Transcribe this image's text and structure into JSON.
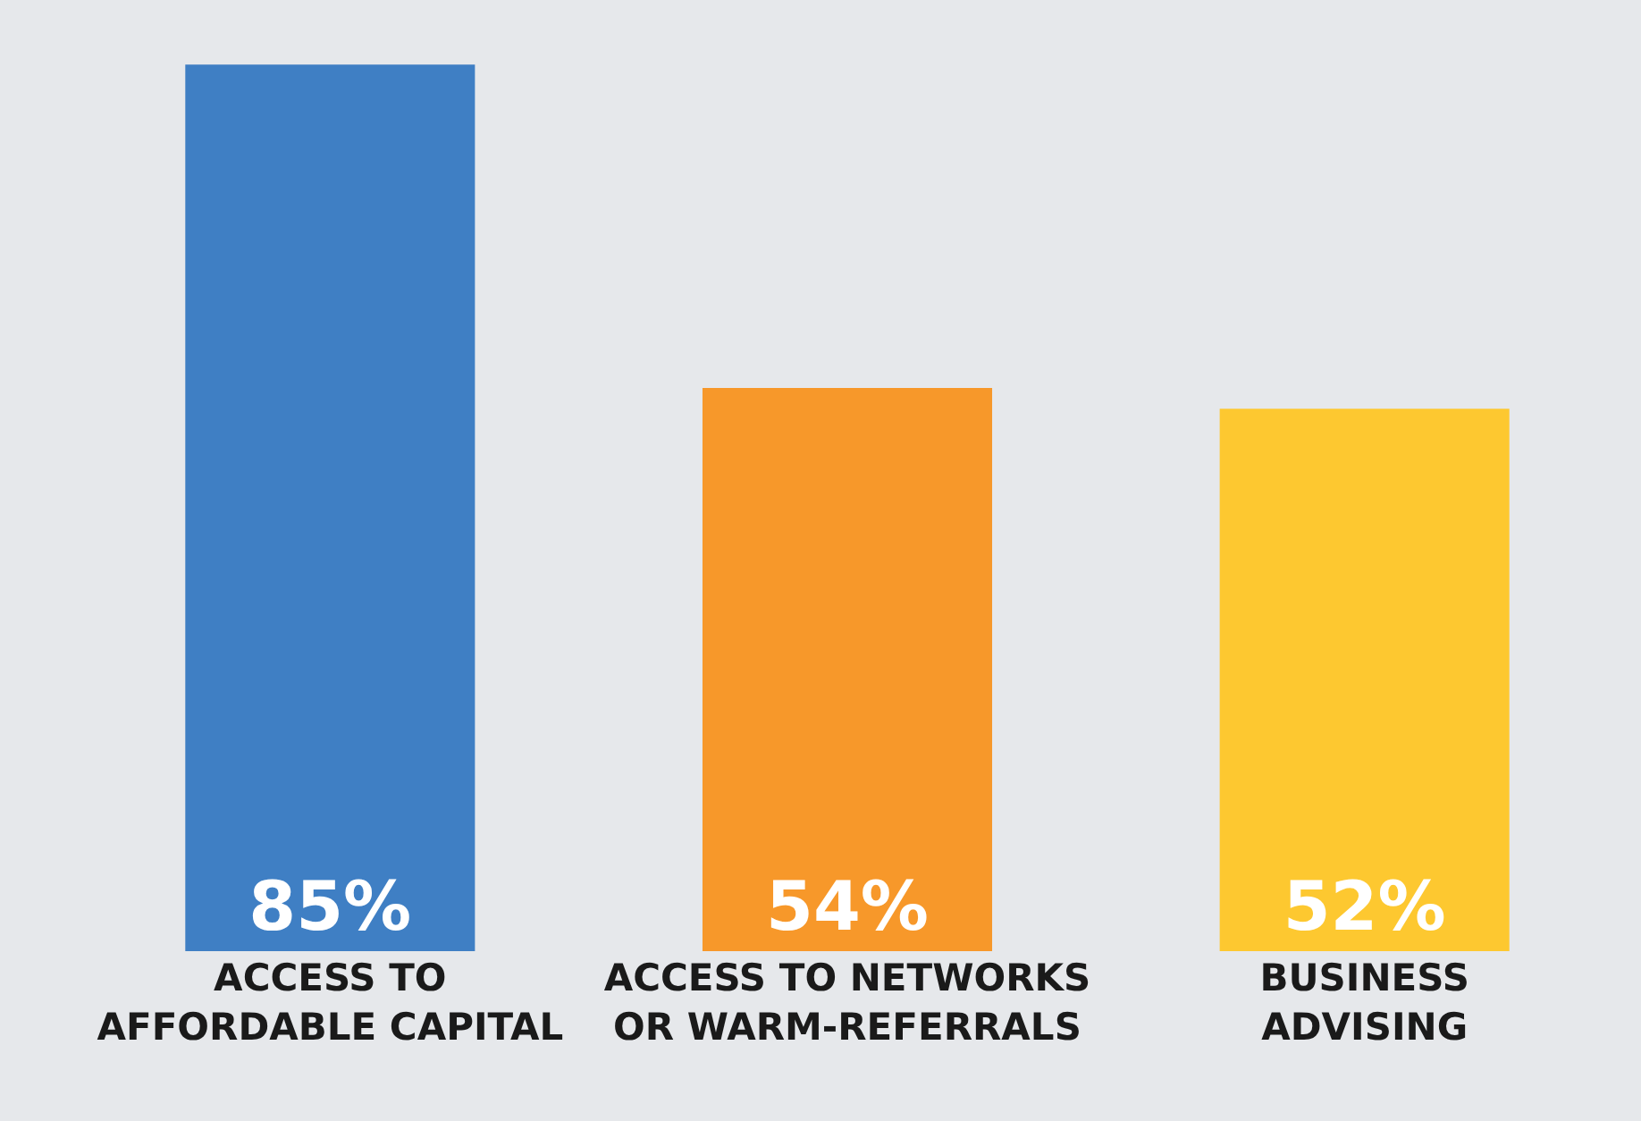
{
  "chart_data": {
    "type": "bar",
    "categories": [
      "ACCESS TO\nAFFORDABLE CAPITAL",
      "ACCESS TO NETWORKS\nOR WARM-REFERRALS",
      "BUSINESS\nADVISING"
    ],
    "values": [
      85,
      54,
      52
    ],
    "value_labels": [
      "85%",
      "54%",
      "52%"
    ],
    "colors": [
      "#3f7fc4",
      "#f7982a",
      "#fdc830"
    ],
    "grid": false,
    "legend": false
  }
}
